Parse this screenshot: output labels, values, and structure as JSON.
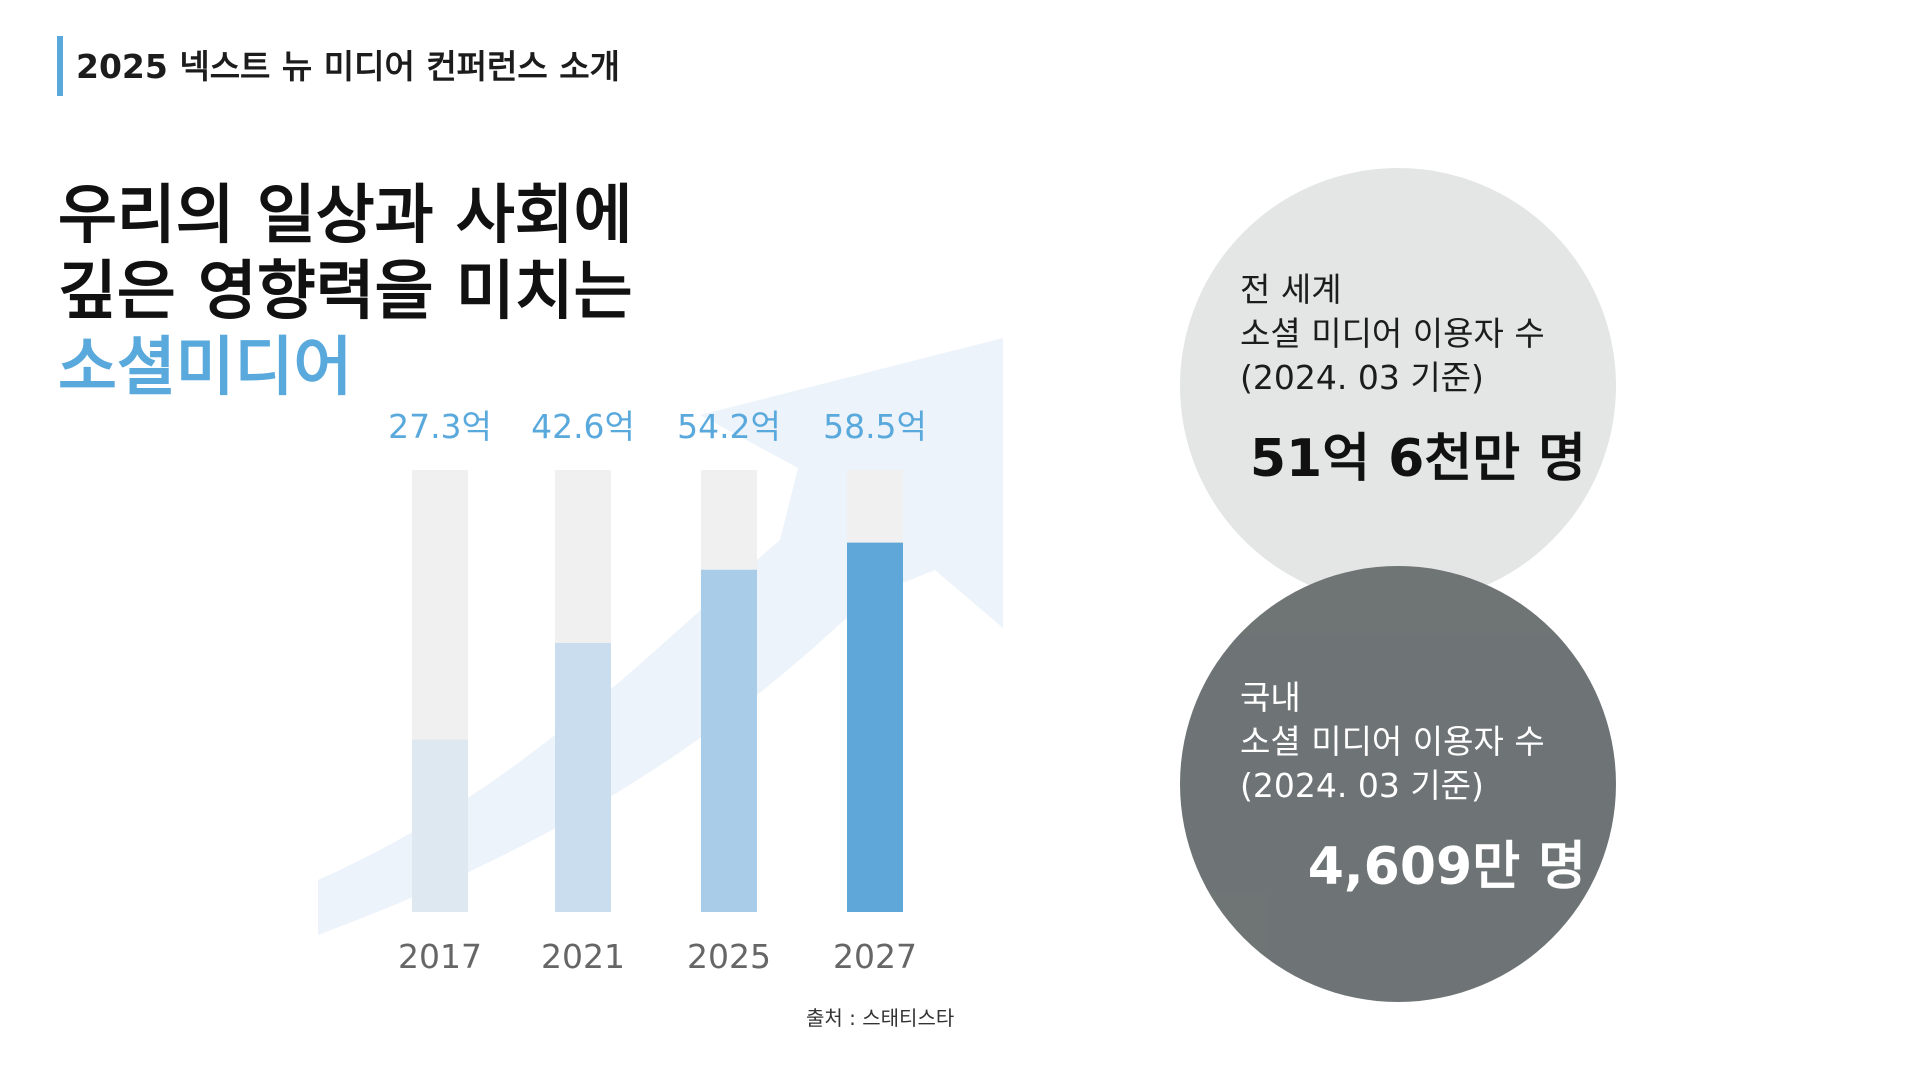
{
  "header": {
    "title": "2025 넥스트 뉴 미디어 컨퍼런스 소개"
  },
  "headline": {
    "line1": "우리의 일상과 사회에",
    "line2": "깊은 영향력을 미치는",
    "line3": "소셜미디어"
  },
  "chart_data": {
    "type": "bar",
    "categories": [
      "2017",
      "2021",
      "2025",
      "2027"
    ],
    "values": [
      27.3,
      42.6,
      54.2,
      58.5
    ],
    "value_labels": [
      "27.3억",
      "42.6억",
      "54.2억",
      "58.5억"
    ],
    "ylim": [
      0,
      70
    ],
    "title": "",
    "xlabel": "",
    "ylabel": "",
    "grid": false,
    "colors": {
      "track": "#f0f0f0",
      "bars": [
        "#dde8f1",
        "#c9ddee",
        "#a9cce8",
        "#5fa7d8"
      ],
      "label": "#5aa9dd",
      "axis_label": "#666666",
      "arrow": "#e6eff8"
    }
  },
  "source": {
    "text": "출처 : 스태티스타"
  },
  "world": {
    "line1": "전 세계",
    "line2": "소셜 미디어 이용자 수",
    "line3": "(2024. 03 기준)",
    "value": "51억 6천만 명"
  },
  "korea": {
    "line1": "국내",
    "line2": "소셜 미디어 이용자 수",
    "line3": "(2024. 03 기준)",
    "value": "4,609만 명"
  },
  "colors": {
    "accent": "#5aa9dd",
    "circle_light": "#e4e5e5",
    "circle_dark": "#6a7071"
  }
}
